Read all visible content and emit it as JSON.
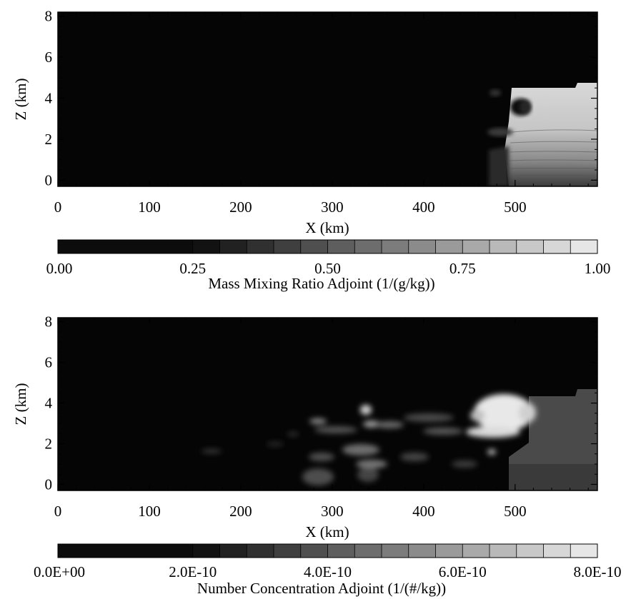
{
  "chart_data": [
    {
      "type": "heatmap",
      "xlabel": "X (km)",
      "ylabel": "Z (km)",
      "xlim": [
        0,
        590
      ],
      "ylim": [
        -0.3,
        8.2
      ],
      "x_ticks": [
        "0",
        "100",
        "200",
        "300",
        "400",
        "500"
      ],
      "x_tick_values": [
        0,
        100,
        200,
        300,
        400,
        500
      ],
      "y_ticks": [
        "0",
        "2",
        "4",
        "6",
        "8"
      ],
      "y_tick_values": [
        0,
        2,
        4,
        6,
        8
      ],
      "colorbar": {
        "label": "Mass Mixing Ratio Adjoint (1/(g/kg))",
        "ticks": [
          "0.00",
          "0.25",
          "0.50",
          "0.75",
          "1.00"
        ],
        "tick_values": [
          0.0,
          0.25,
          0.5,
          0.75,
          1.0
        ],
        "range": [
          0.0,
          1.0
        ],
        "levels": 20
      },
      "features": [
        {
          "shape": "rect",
          "x": [
            505,
            590
          ],
          "z": [
            -0.3,
            4.5
          ],
          "value": 0.8,
          "vertical_gradient": true
        },
        {
          "shape": "rect",
          "x": [
            470,
            505
          ],
          "z": [
            -0.3,
            2.0
          ],
          "value": 0.25
        },
        {
          "shape": "blob",
          "x": 490,
          "z": 3.5,
          "rx": 18,
          "rz": 0.8,
          "value": 0.35
        }
      ]
    },
    {
      "type": "heatmap",
      "xlabel": "X (km)",
      "ylabel": "Z (km)",
      "xlim": [
        0,
        590
      ],
      "ylim": [
        -0.3,
        8.2
      ],
      "x_ticks": [
        "0",
        "100",
        "200",
        "300",
        "400",
        "500"
      ],
      "x_tick_values": [
        0,
        100,
        200,
        300,
        400,
        500
      ],
      "y_ticks": [
        "0",
        "2",
        "4",
        "6",
        "8"
      ],
      "y_tick_values": [
        0,
        2,
        4,
        6,
        8
      ],
      "colorbar": {
        "label": "Number Concentration Adjoint (1/(#/kg))",
        "ticks": [
          "0.0E+00",
          "2.0E-10",
          "4.0E-10",
          "6.0E-10",
          "8.0E-10"
        ],
        "tick_values": [
          0.0,
          2e-10,
          4e-10,
          6e-10,
          8e-10
        ],
        "range": [
          0.0,
          8e-10
        ],
        "levels": 20
      },
      "features": [
        {
          "shape": "rect",
          "x": [
            505,
            590
          ],
          "z": [
            -0.3,
            4.5
          ],
          "value": 2.6e-10
        },
        {
          "shape": "blob",
          "x": 490,
          "z": 3.5,
          "rx": 35,
          "rz": 1.0,
          "value": 8e-10
        },
        {
          "shape": "blob",
          "x": 485,
          "z": 2.4,
          "rx": 30,
          "rz": 0.3,
          "value": 7.5e-10
        },
        {
          "shape": "blob",
          "x": 340,
          "z": 3.7,
          "rx": 8,
          "rz": 0.3,
          "value": 6.5e-10
        },
        {
          "shape": "blob",
          "x": 290,
          "z": 3.1,
          "rx": 10,
          "rz": 0.2,
          "value": 4e-10
        },
        {
          "shape": "blob",
          "x": 330,
          "z": 1.8,
          "rx": 25,
          "rz": 0.4,
          "value": 4.5e-10
        },
        {
          "shape": "blob",
          "x": 290,
          "z": 0.5,
          "rx": 20,
          "rz": 0.5,
          "value": 3e-10
        },
        {
          "shape": "blob",
          "x": 170,
          "z": 1.8,
          "rx": 20,
          "rz": 0.1,
          "value": 2e-10
        },
        {
          "shape": "blob",
          "x": 400,
          "z": 3.3,
          "rx": 40,
          "rz": 0.5,
          "value": 3e-10
        },
        {
          "shape": "blob",
          "x": 380,
          "z": 2.2,
          "rx": 20,
          "rz": 0.3,
          "value": 2.5e-10
        }
      ]
    }
  ]
}
